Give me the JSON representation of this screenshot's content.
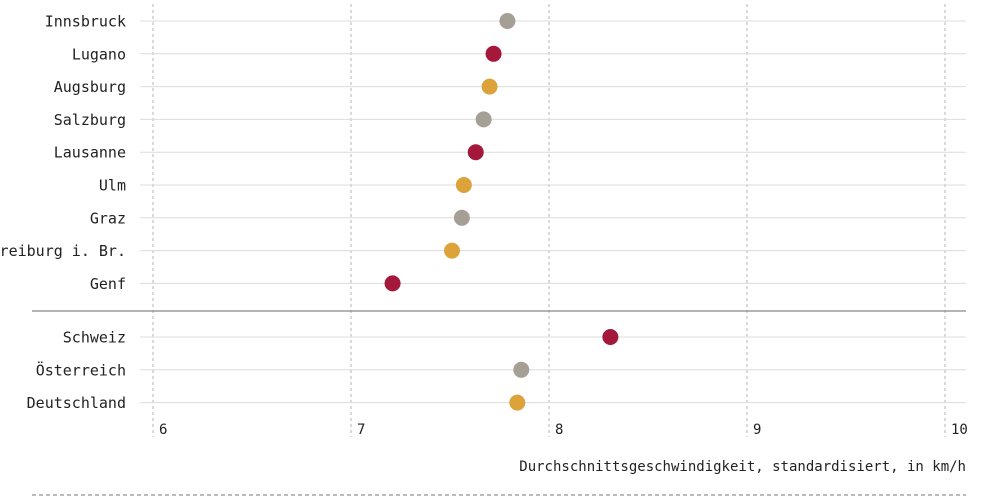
{
  "chart_data": {
    "type": "scatter",
    "xlabel": "Durchschnittsgeschwindigkeit, standardisiert, in km/h",
    "xlim": [
      5.95,
      10.1
    ],
    "xticks": [
      6,
      7,
      8,
      9,
      10
    ],
    "grid": true,
    "colors": {
      "Schweiz": "#a3183b",
      "Österreich": "#a59f96",
      "Deutschland": "#dca33a"
    },
    "groups": [
      {
        "points": [
          {
            "label": "Innsbruck",
            "value": 7.79,
            "country": "Österreich"
          },
          {
            "label": "Lugano",
            "value": 7.72,
            "country": "Schweiz"
          },
          {
            "label": "Augsburg",
            "value": 7.7,
            "country": "Deutschland"
          },
          {
            "label": "Salzburg",
            "value": 7.67,
            "country": "Österreich"
          },
          {
            "label": "Lausanne",
            "value": 7.63,
            "country": "Schweiz"
          },
          {
            "label": "Ulm",
            "value": 7.57,
            "country": "Deutschland"
          },
          {
            "label": "Graz",
            "value": 7.56,
            "country": "Österreich"
          },
          {
            "label": "Freiburg i. Br.",
            "value": 7.51,
            "country": "Deutschland"
          },
          {
            "label": "Genf",
            "value": 7.21,
            "country": "Schweiz"
          }
        ]
      },
      {
        "points": [
          {
            "label": "Schweiz",
            "value": 8.31,
            "country": "Schweiz"
          },
          {
            "label": "Österreich",
            "value": 7.86,
            "country": "Österreich"
          },
          {
            "label": "Deutschland",
            "value": 7.84,
            "country": "Deutschland"
          }
        ]
      }
    ]
  }
}
